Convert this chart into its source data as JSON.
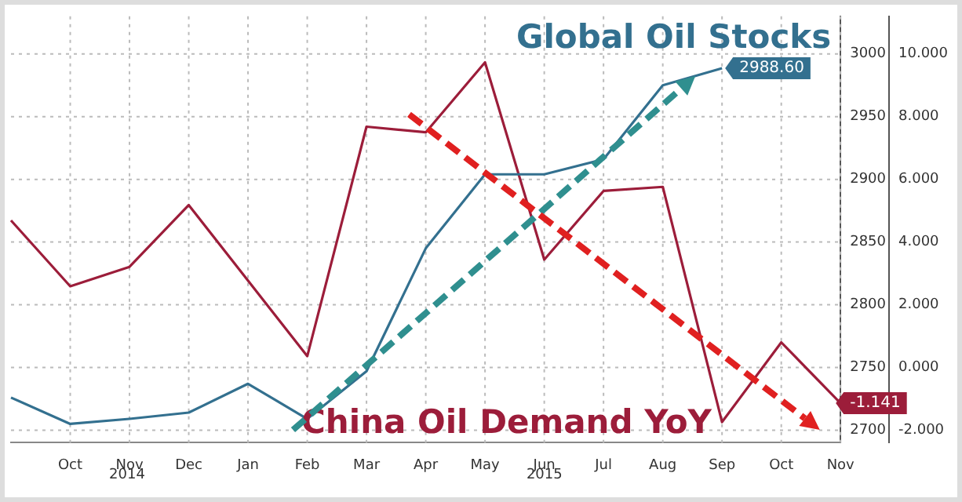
{
  "chart_data": {
    "type": "line",
    "categories": [
      null,
      "Oct",
      "Nov",
      "Dec",
      "Jan",
      "Feb",
      "Mar",
      "Apr",
      "May",
      "Jun",
      "Jul",
      "Aug",
      "Sep",
      "Oct",
      "Nov"
    ],
    "series": [
      {
        "color": "#33708f",
        "values": [
          2726,
          2705,
          2709,
          2714,
          2737,
          2709,
          2747,
          2845,
          2904,
          2904,
          2916,
          2975,
          2988.6,
          null,
          null
        ],
        "value_labels": [
          null,
          null,
          null,
          null,
          null,
          null,
          null,
          null,
          null,
          null,
          null,
          null,
          "2988.60",
          null,
          null
        ]
      },
      {
        "color": "#9c1d3a",
        "axis": "y2",
        "values": [
          4.69,
          2.59,
          3.21,
          5.18,
          2.77,
          0.36,
          7.68,
          7.5,
          9.73,
          3.44,
          5.63,
          5.76,
          -1.74,
          0.8,
          -1.141
        ],
        "value_labels": [
          null,
          null,
          null,
          null,
          null,
          null,
          null,
          null,
          null,
          null,
          null,
          null,
          null,
          null,
          "-1.141"
        ]
      }
    ],
    "ylim": [
      2690,
      3030
    ],
    "yticks": [
      {
        "value": 2700,
        "label": "2700"
      },
      2750,
      2800,
      2850,
      2900,
      2950,
      3000
    ],
    "y2lim": [
      -2.4,
      11.2
    ],
    "y2ticks": [
      {
        "value": -2,
        "label": "-2.000"
      },
      {
        "value": 0,
        "label": "0.000"
      },
      {
        "value": 2,
        "label": "2.000"
      },
      {
        "value": 4,
        "label": "4.000"
      },
      {
        "value": 6,
        "label": "6.000"
      },
      {
        "value": 8,
        "label": "8.000"
      },
      {
        "value": 10,
        "label": "10.000"
      }
    ],
    "annotations": [
      "Global Oil Stocks",
      "China Oil Demand YoY",
      "2014",
      "2015"
    ],
    "grid": true,
    "legend": false,
    "marker": "none",
    "line_style": "solid"
  }
}
